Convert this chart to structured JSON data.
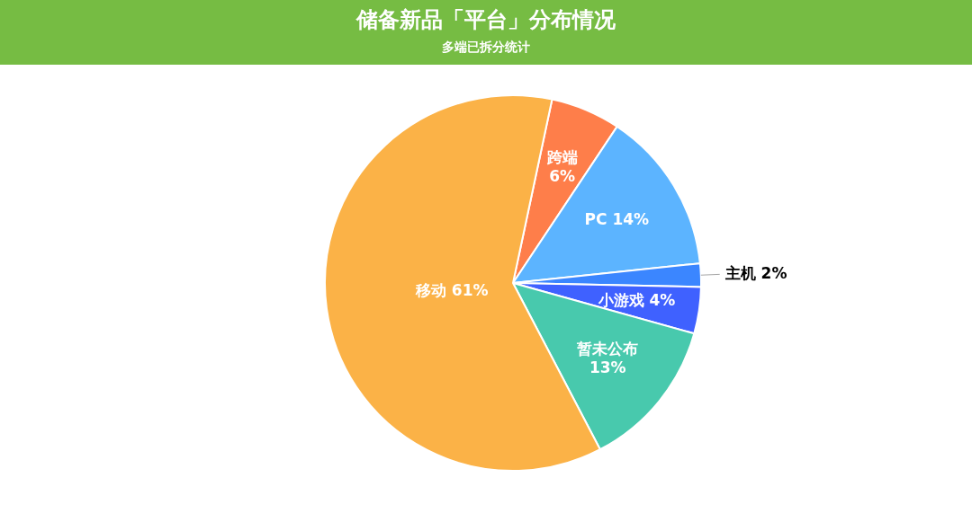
{
  "chart_data": {
    "type": "pie",
    "title": "储备新品「平台」分布情况",
    "subtitle": "多端已拆分统计",
    "categories": [
      "跨端",
      "PC",
      "主机",
      "小游戏",
      "暂未公布",
      "移动"
    ],
    "values": [
      6,
      14,
      2,
      4,
      13,
      61
    ],
    "colors": [
      "#fe7e4a",
      "#5cb4ff",
      "#3b86ff",
      "#3f61ff",
      "#48c9ad",
      "#fbb247"
    ],
    "value_labels": [
      "6%",
      "14%",
      "2%",
      "4%",
      "13%",
      "61%"
    ]
  }
}
